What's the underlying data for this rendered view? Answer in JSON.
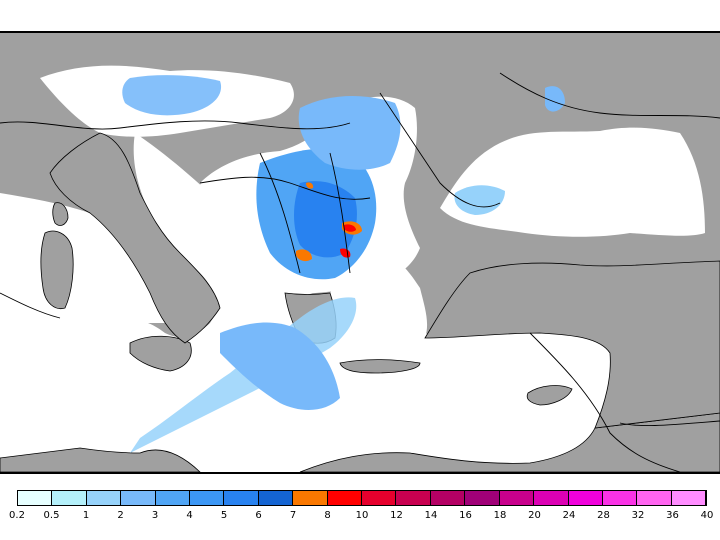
{
  "legend": {
    "colors": [
      "#e6ffff",
      "#b4f0fa",
      "#96d2fa",
      "#78b9fa",
      "#50a5f5",
      "#3c97f5",
      "#2882f0",
      "#1464d2",
      "#fa7800",
      "#ff0000",
      "#e6002d",
      "#c80050",
      "#b40064",
      "#a00078",
      "#c8008c",
      "#dc00b4",
      "#f000dc",
      "#fa32e6",
      "#ff64f0",
      "#ff8cff"
    ],
    "labels": [
      "0.2",
      "0.5",
      "1",
      "2",
      "3",
      "4",
      "5",
      "6",
      "7",
      "8",
      "10",
      "12",
      "14",
      "16",
      "18",
      "20",
      "24",
      "28",
      "32",
      "36",
      "40"
    ]
  },
  "map_colors": {
    "land": "#a0a0a0",
    "sea_no_precip": "#ffffff",
    "coastline": "#000000"
  }
}
